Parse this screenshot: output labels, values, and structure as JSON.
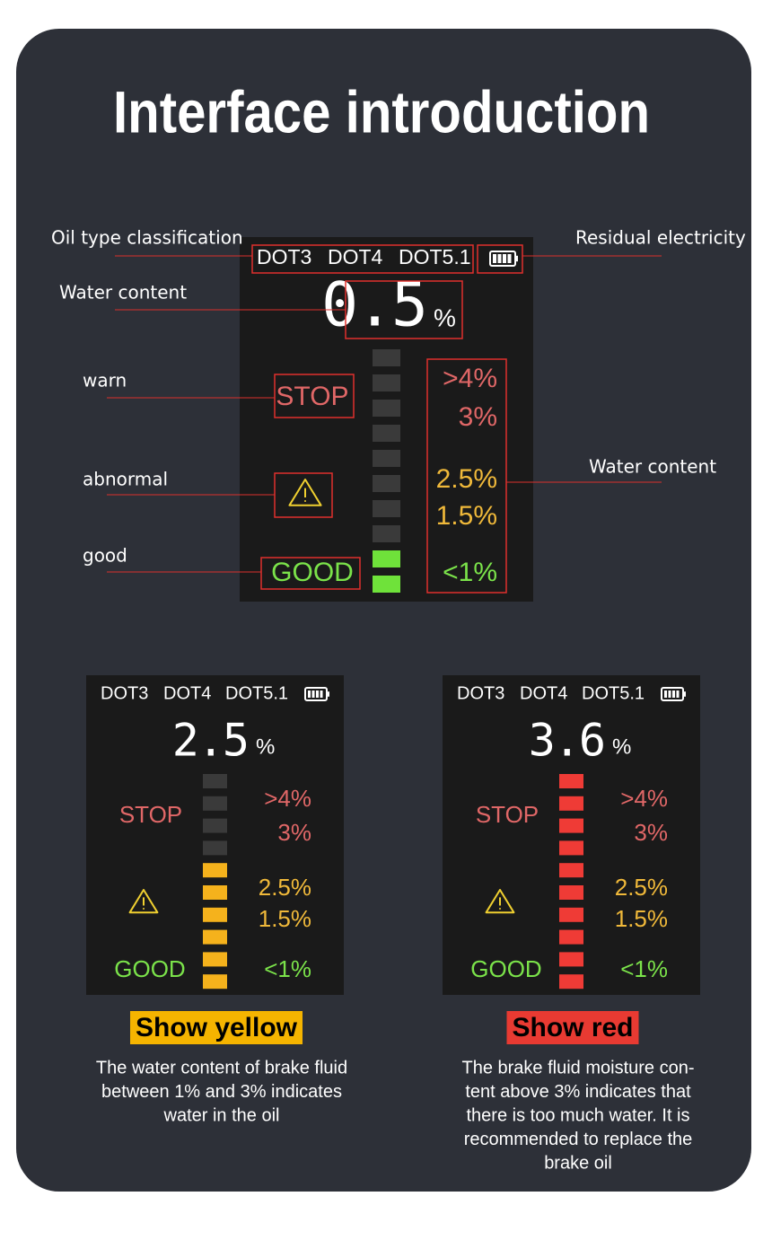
{
  "title": "Interface introduction",
  "callouts": {
    "oil_type": "Oil type classification",
    "battery": "Residual electricity",
    "reading": "Water content",
    "warn": "warn",
    "abnormal": "abnormal",
    "good": "good",
    "scale": "Water content"
  },
  "main_display": {
    "oil_types": [
      "DOT3",
      "DOT4",
      "DOT5.1"
    ],
    "reading": 0.5,
    "unit": "%",
    "stop": "STOP",
    "good": "GOOD",
    "scale": [
      ">4%",
      "3%",
      "2.5%",
      "1.5%",
      "<1%"
    ],
    "segments": 10,
    "lit_segments": 2,
    "lit_color": "#6fe23a"
  },
  "examples": [
    {
      "display": {
        "oil_types": [
          "DOT3",
          "DOT4",
          "DOT5.1"
        ],
        "reading": 2.5,
        "unit": "%",
        "stop": "STOP",
        "good": "GOOD",
        "scale": [
          ">4%",
          "3%",
          "2.5%",
          "1.5%",
          "<1%"
        ],
        "segments": 10,
        "lit_segments": 6,
        "lit_color": "#f5b21c"
      },
      "caption": "Show yellow",
      "caption_color": "#f5b400",
      "description": [
        "The water content of brake fluid",
        "between 1% and 3% indicates",
        "water in the oil"
      ]
    },
    {
      "display": {
        "oil_types": [
          "DOT3",
          "DOT4",
          "DOT5.1"
        ],
        "reading": 3.6,
        "unit": "%",
        "stop": "STOP",
        "good": "GOOD",
        "scale": [
          ">4%",
          "3%",
          "2.5%",
          "1.5%",
          "<1%"
        ],
        "segments": 10,
        "lit_segments": 10,
        "lit_color": "#ef3b36"
      },
      "caption": "Show red",
      "caption_color": "#e83a32",
      "description": [
        "The brake fluid moisture con-",
        "tent above 3% indicates that",
        "there is too much water. It is",
        "recommended to replace the",
        "brake oil"
      ]
    }
  ]
}
